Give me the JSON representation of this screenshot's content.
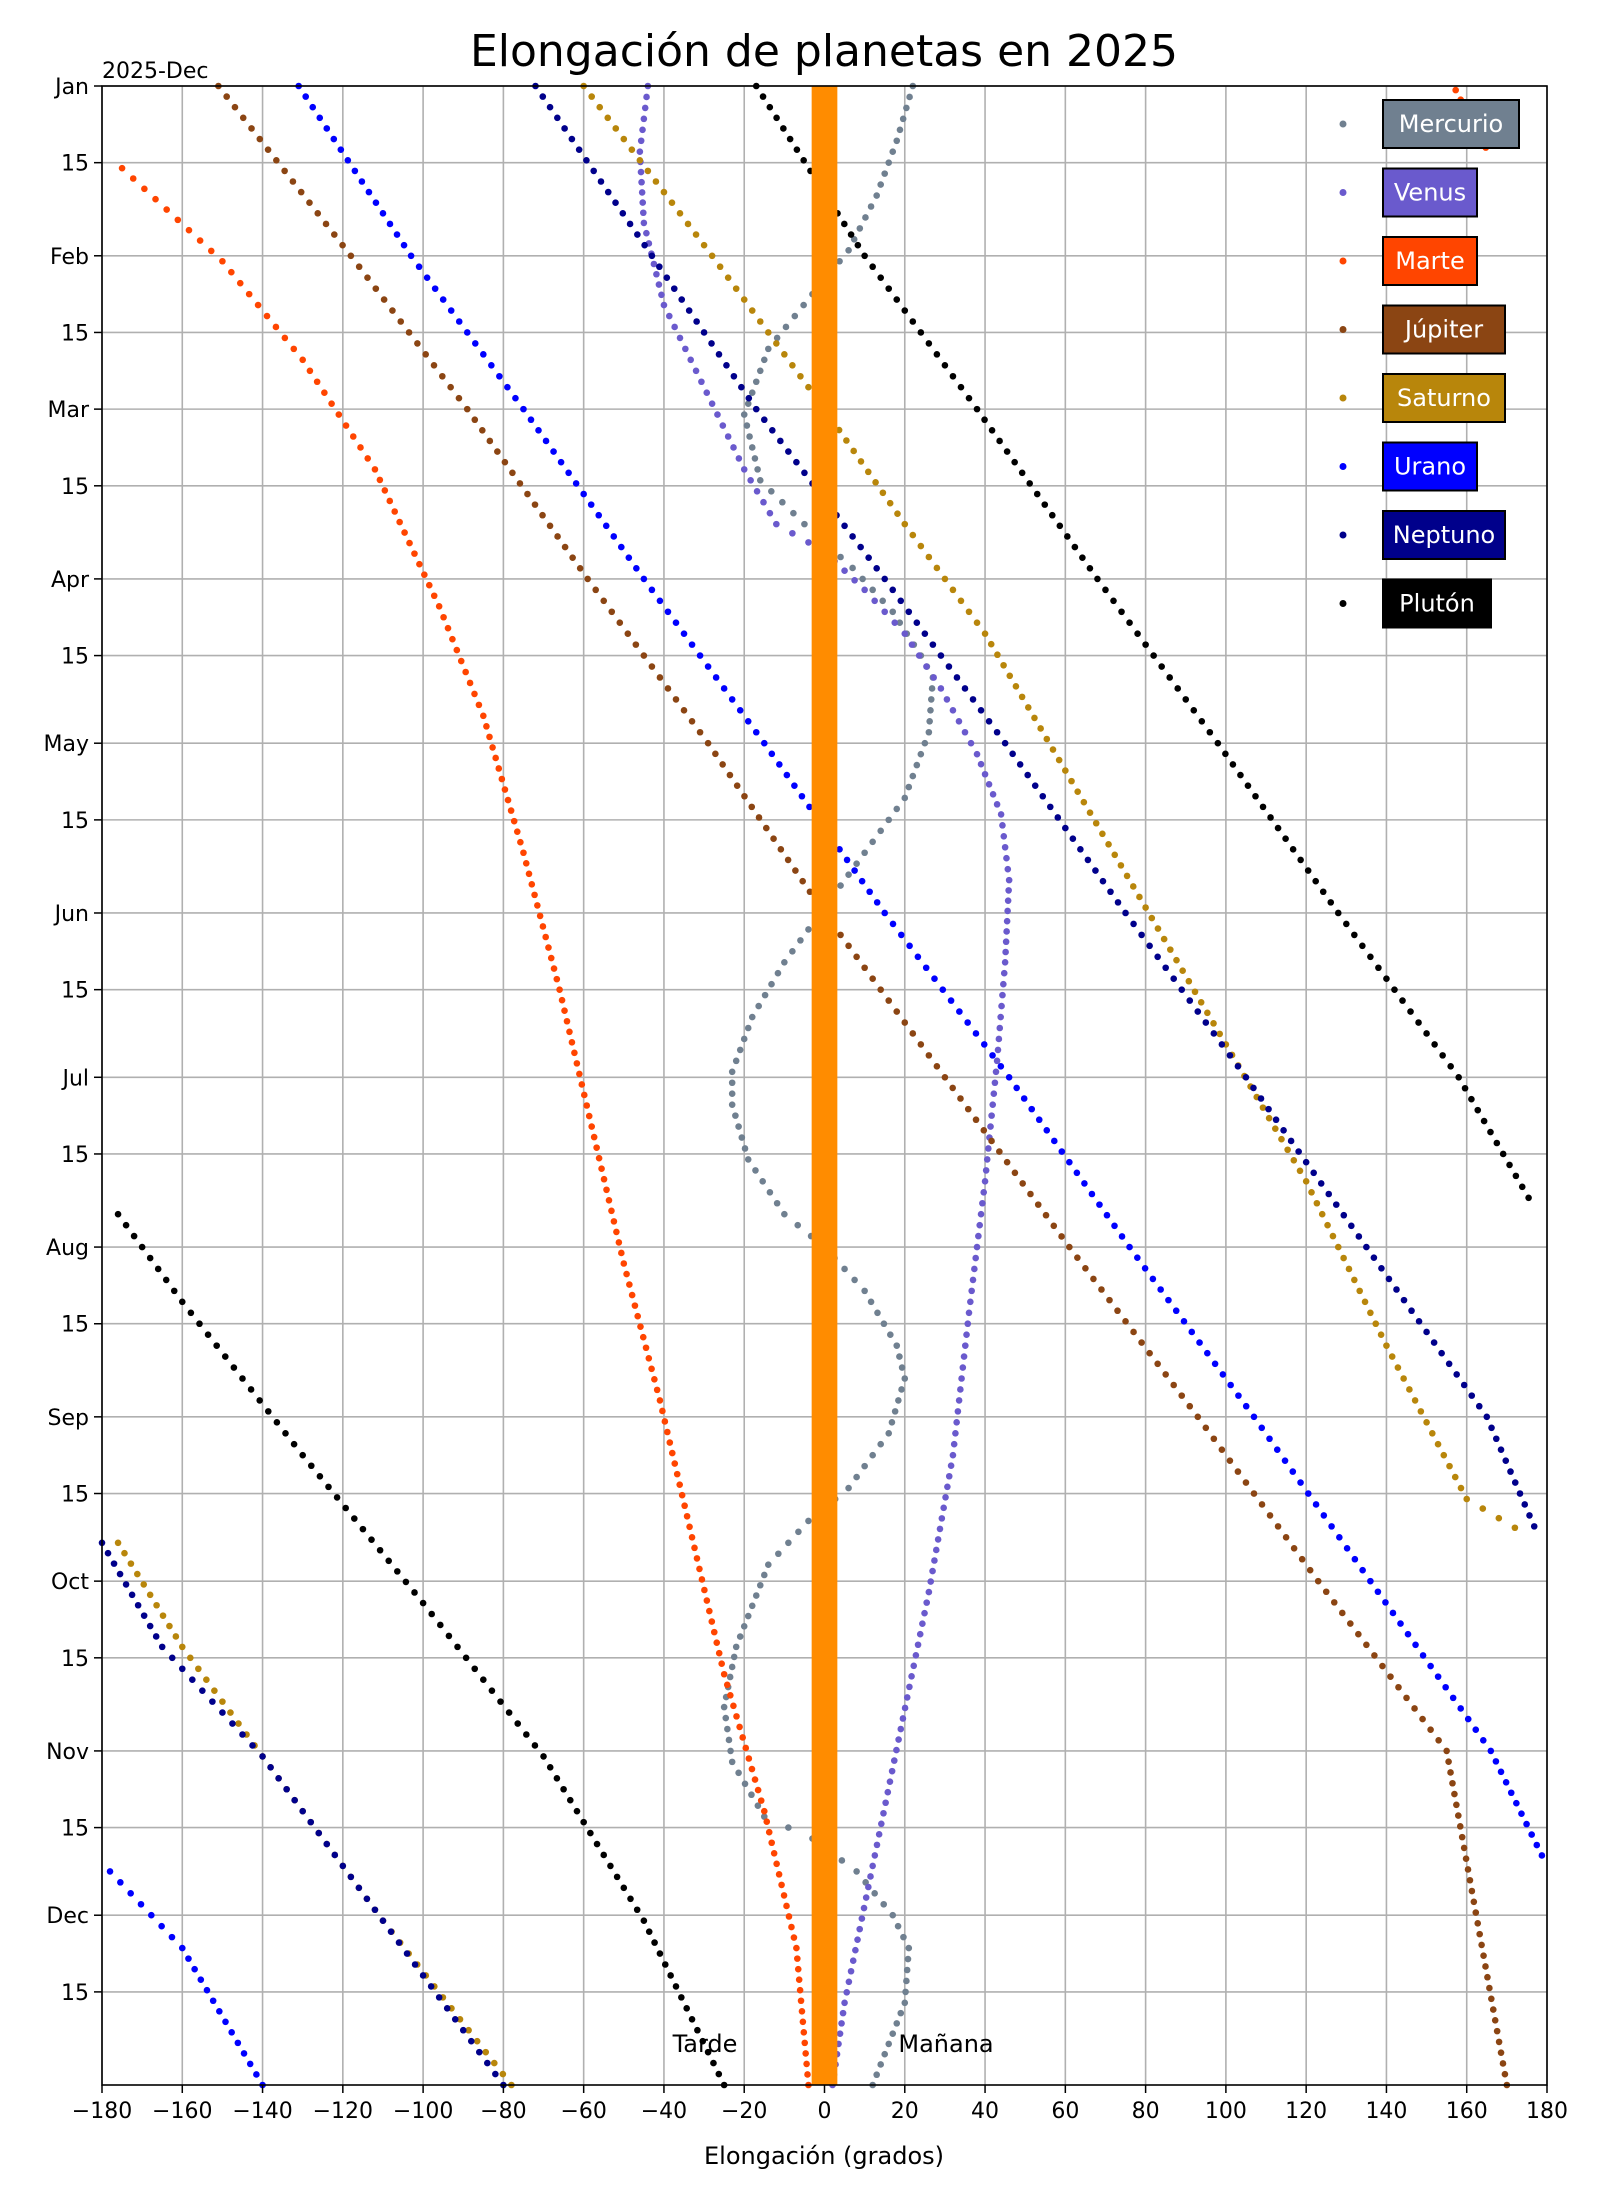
{
  "chart_data": {
    "type": "scatter",
    "title": "Elongación de  planetas en 2025",
    "corner_label": "2025-Dec",
    "xlabel": "Elongación (grados)",
    "xlim": [
      -180,
      180
    ],
    "x_ticks": [
      -180,
      -160,
      -140,
      -120,
      -100,
      -80,
      -60,
      -40,
      -20,
      0,
      20,
      40,
      60,
      80,
      100,
      120,
      140,
      160,
      180
    ],
    "ylim_days": [
      0,
      365
    ],
    "y_ticks": [
      {
        "label": "Jan",
        "day": 0
      },
      {
        "label": "15",
        "day": 14
      },
      {
        "label": "Feb",
        "day": 31
      },
      {
        "label": "15",
        "day": 45
      },
      {
        "label": "Mar",
        "day": 59
      },
      {
        "label": "15",
        "day": 73
      },
      {
        "label": "Apr",
        "day": 90
      },
      {
        "label": "15",
        "day": 104
      },
      {
        "label": "May",
        "day": 120
      },
      {
        "label": "15",
        "day": 134
      },
      {
        "label": "Jun",
        "day": 151
      },
      {
        "label": "15",
        "day": 165
      },
      {
        "label": "Jul",
        "day": 181
      },
      {
        "label": "15",
        "day": 195
      },
      {
        "label": "Aug",
        "day": 212
      },
      {
        "label": "15",
        "day": 226
      },
      {
        "label": "Sep",
        "day": 243
      },
      {
        "label": "15",
        "day": 257
      },
      {
        "label": "Oct",
        "day": 273
      },
      {
        "label": "15",
        "day": 287
      },
      {
        "label": "Nov",
        "day": 304
      },
      {
        "label": "15",
        "day": 318
      },
      {
        "label": "Dec",
        "day": 334
      },
      {
        "label": "15",
        "day": 348
      }
    ],
    "annotations": {
      "left": "Tarde",
      "right": "Mañana"
    },
    "sun_band_halfwidth_deg": 3.2,
    "sun_color": "#ff8c00",
    "grid": true,
    "legend_position": "top-right",
    "series": [
      {
        "name": "Mercurio",
        "color": "#708090",
        "text_color": "#ffffff",
        "points": [
          [
            22,
            0
          ],
          [
            18,
            10
          ],
          [
            13,
            20
          ],
          [
            6,
            30
          ],
          [
            -3,
            38
          ],
          [
            -14,
            48
          ],
          [
            -20,
            60
          ],
          [
            -16,
            72
          ],
          [
            -5,
            80
          ],
          [
            7,
            88
          ],
          [
            17,
            96
          ],
          [
            24,
            104
          ],
          [
            27,
            108
          ],
          [
            26,
            118
          ],
          [
            20,
            130
          ],
          [
            10,
            140
          ],
          [
            0,
            150
          ],
          [
            -10,
            160
          ],
          [
            -18,
            170
          ],
          [
            -23,
            180
          ],
          [
            -23,
            186
          ],
          [
            -19,
            196
          ],
          [
            -10,
            206
          ],
          [
            0,
            212
          ],
          [
            10,
            220
          ],
          [
            18,
            230
          ],
          [
            20,
            236
          ],
          [
            16,
            246
          ],
          [
            6,
            256
          ],
          [
            -4,
            262
          ],
          [
            -14,
            270
          ],
          [
            -22,
            285
          ],
          [
            -25,
            296
          ],
          [
            -23,
            306
          ],
          [
            -15,
            316
          ],
          [
            -3,
            320
          ],
          [
            8,
            326
          ],
          [
            17,
            334
          ],
          [
            21,
            340
          ],
          [
            20,
            350
          ],
          [
            12,
            365
          ]
        ]
      },
      {
        "name": "Venus",
        "color": "#6a5acd",
        "text_color": "#ffffff",
        "points": [
          [
            -44,
            0
          ],
          [
            -46,
            12
          ],
          [
            -45,
            25
          ],
          [
            -40,
            40
          ],
          [
            -28,
            58
          ],
          [
            -20,
            70
          ],
          [
            -12,
            80
          ],
          [
            0,
            85
          ],
          [
            10,
            92
          ],
          [
            20,
            100
          ],
          [
            29,
            110
          ],
          [
            38,
            122
          ],
          [
            44,
            133
          ],
          [
            46,
            145
          ],
          [
            45,
            160
          ],
          [
            43,
            178
          ],
          [
            40,
            200
          ],
          [
            36,
            224
          ],
          [
            32,
            250
          ],
          [
            26,
            275
          ],
          [
            19,
            300
          ],
          [
            12,
            325
          ],
          [
            5,
            350
          ],
          [
            2,
            365
          ]
        ]
      },
      {
        "name": "Marte",
        "color": "#ff4500",
        "text_color": "#ffffff",
        "points": [
          [
            156,
            -1
          ],
          [
            161,
            6
          ],
          [
            166,
            13
          ],
          [
            -175,
            15
          ],
          [
            -150,
            32
          ],
          [
            -130,
            50
          ],
          [
            -112,
            70
          ],
          [
            -96,
            95
          ],
          [
            -85,
            115
          ],
          [
            -75,
            140
          ],
          [
            -66,
            165
          ],
          [
            -58,
            190
          ],
          [
            -50,
            215
          ],
          [
            -41,
            240
          ],
          [
            -33,
            265
          ],
          [
            -25,
            290
          ],
          [
            -15,
            315
          ],
          [
            -7,
            340
          ],
          [
            -4,
            365
          ]
        ]
      },
      {
        "name": "Júpiter",
        "color": "#8b4513",
        "text_color": "#ffffff",
        "points": [
          [
            -151,
            0
          ],
          [
            -118,
            31
          ],
          [
            -89,
            59
          ],
          [
            -59,
            90
          ],
          [
            -29,
            120
          ],
          [
            0,
            151
          ],
          [
            30,
            181
          ],
          [
            61,
            212
          ],
          [
            93,
            243
          ],
          [
            123,
            273
          ],
          [
            155,
            304
          ],
          [
            170,
            365
          ]
        ]
      },
      {
        "name": "Saturno",
        "color": "#b8860b",
        "text_color": "#ffffff",
        "points": [
          [
            -60,
            0
          ],
          [
            -28,
            31
          ],
          [
            0,
            59
          ],
          [
            20,
            80
          ],
          [
            40,
            100
          ],
          [
            60,
            125
          ],
          [
            80,
            150
          ],
          [
            100,
            175
          ],
          [
            120,
            200
          ],
          [
            140,
            230
          ],
          [
            160,
            258
          ],
          [
            176,
            265
          ],
          [
            -176,
            266
          ],
          [
            -160,
            285
          ],
          [
            -140,
            305
          ],
          [
            -110,
            335
          ],
          [
            -78,
            365
          ]
        ]
      },
      {
        "name": "Urano",
        "color": "#0000ff",
        "text_color": "#ffffff",
        "points": [
          [
            -131,
            0
          ],
          [
            -103,
            31
          ],
          [
            -75,
            59
          ],
          [
            -45,
            90
          ],
          [
            -15,
            120
          ],
          [
            15,
            151
          ],
          [
            46,
            181
          ],
          [
            76,
            212
          ],
          [
            107,
            243
          ],
          [
            136,
            273
          ],
          [
            166,
            304
          ],
          [
            180,
            325
          ],
          [
            -178,
            326
          ],
          [
            -160,
            340
          ],
          [
            -140,
            365
          ]
        ]
      },
      {
        "name": "Neptuno",
        "color": "#00008b",
        "text_color": "#ffffff",
        "points": [
          [
            -72,
            0
          ],
          [
            -43,
            31
          ],
          [
            -17,
            59
          ],
          [
            15,
            90
          ],
          [
            45,
            120
          ],
          [
            75,
            151
          ],
          [
            105,
            181
          ],
          [
            135,
            212
          ],
          [
            165,
            243
          ],
          [
            178,
            265
          ],
          [
            -180,
            266
          ],
          [
            -165,
            285
          ],
          [
            -140,
            305
          ],
          [
            -110,
            335
          ],
          [
            -80,
            365
          ]
        ]
      },
      {
        "name": "Plutón",
        "color": "#000000",
        "text_color": "#ffffff",
        "points": [
          [
            -17,
            0
          ],
          [
            10,
            31
          ],
          [
            38,
            59
          ],
          [
            68,
            90
          ],
          [
            98,
            120
          ],
          [
            128,
            151
          ],
          [
            158,
            181
          ],
          [
            177,
            205
          ],
          [
            -176,
            206
          ],
          [
            -160,
            222
          ],
          [
            -130,
            250
          ],
          [
            -100,
            277
          ],
          [
            -70,
            305
          ],
          [
            -45,
            335
          ],
          [
            -25,
            365
          ]
        ]
      }
    ]
  }
}
